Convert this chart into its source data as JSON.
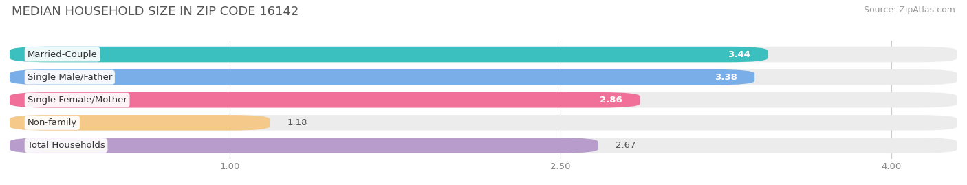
{
  "title": "MEDIAN HOUSEHOLD SIZE IN ZIP CODE 16142",
  "source": "Source: ZipAtlas.com",
  "categories": [
    "Married-Couple",
    "Single Male/Father",
    "Single Female/Mother",
    "Non-family",
    "Total Households"
  ],
  "values": [
    3.44,
    3.38,
    2.86,
    1.18,
    2.67
  ],
  "bar_colors": [
    "#3bbfbf",
    "#7aaee8",
    "#f07099",
    "#f5c98a",
    "#b89dcc"
  ],
  "value_inside": [
    true,
    true,
    true,
    false,
    false
  ],
  "xlim": [
    0,
    4.3
  ],
  "xmin": 0,
  "xticks": [
    1.0,
    2.5,
    4.0
  ],
  "xtick_labels": [
    "1.00",
    "2.50",
    "4.00"
  ],
  "background_color": "#ffffff",
  "bar_background_color": "#ececec",
  "title_fontsize": 13,
  "source_fontsize": 9,
  "label_fontsize": 9.5,
  "value_fontsize": 9.5
}
